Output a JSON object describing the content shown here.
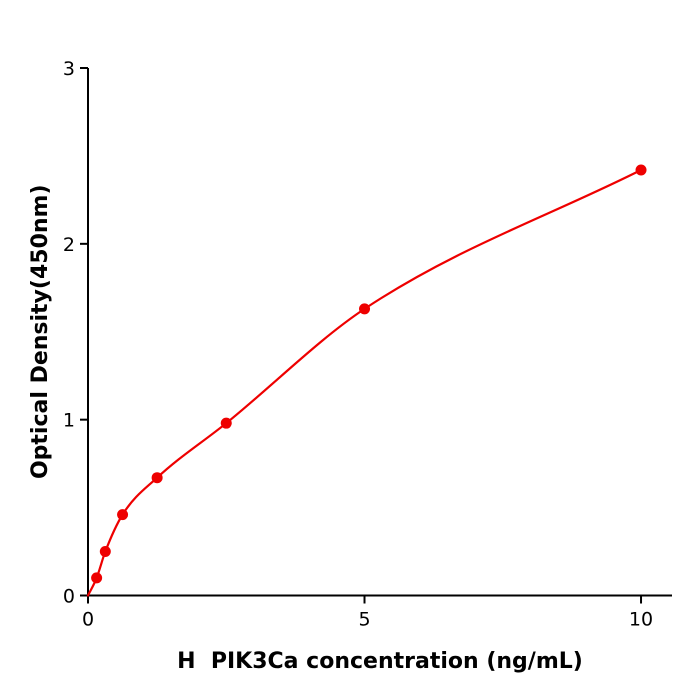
{
  "chart_data": {
    "type": "scatter",
    "title": "",
    "xlabel": "H  PIK3Ca concentration (ng/mL)",
    "ylabel": "Optical Density(450nm)",
    "x": [
      0.156,
      0.313,
      0.625,
      1.25,
      2.5,
      5,
      10
    ],
    "y": [
      0.1,
      0.25,
      0.46,
      0.67,
      0.98,
      1.63,
      2.42
    ],
    "curve_start": [
      0,
      0.0
    ],
    "xlim": [
      0,
      10.56
    ],
    "ylim": [
      0,
      3
    ],
    "xticks": [
      0,
      5,
      10
    ],
    "yticks": [
      0,
      1,
      2,
      3
    ],
    "grid": false,
    "legend_position": "none",
    "series_color": "#ee0000",
    "axis_color": "#000000",
    "marker": "circle",
    "line": "smooth-fit"
  }
}
